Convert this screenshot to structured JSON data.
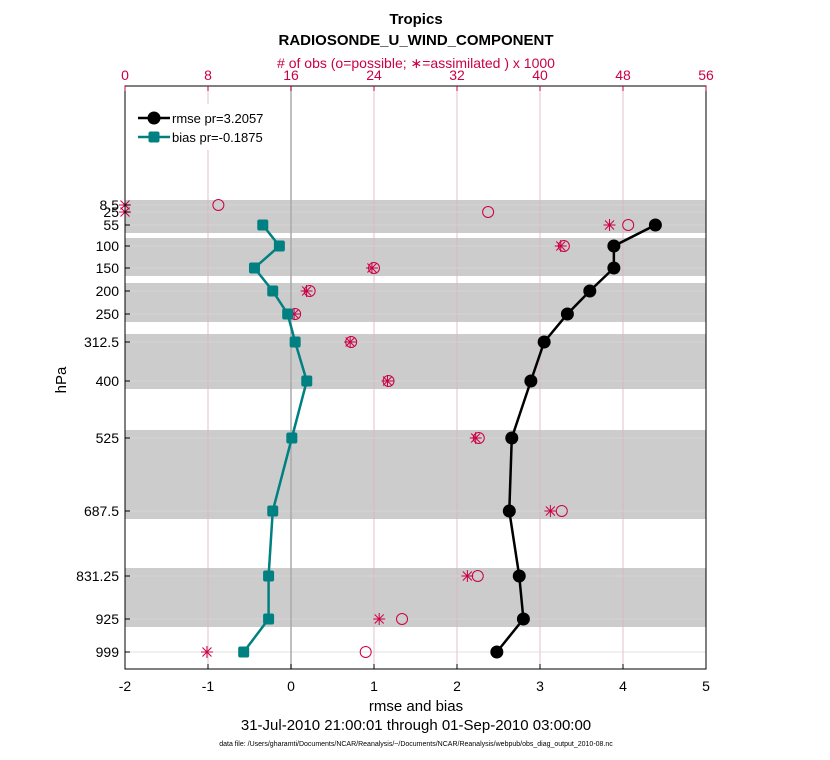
{
  "chart_data": {
    "type": "line",
    "title": "Tropics",
    "subtitle": "RADIOSONDE_U_WIND_COMPONENT",
    "top_axis_label": "# of obs (o=possible; ∗=assimilated ) x 1000",
    "top_ticks": [
      "0",
      "8",
      "16",
      "24",
      "32",
      "40",
      "48",
      "56"
    ],
    "xlabel": "rmse and bias",
    "ylabel": "hPa",
    "xlim": [
      -2,
      5
    ],
    "obs_lim": [
      0,
      56
    ],
    "x_ticks": [
      "-2",
      "-1",
      "0",
      "1",
      "2",
      "3",
      "4",
      "5"
    ],
    "pressure_levels": [
      "8.5",
      "25",
      "55",
      "100",
      "150",
      "200",
      "250",
      "312.5",
      "400",
      "525",
      "687.5",
      "831.25",
      "925",
      "999"
    ],
    "date_range": "31-Jul-2010 21:00:01 through 01-Sep-2010 03:00:00",
    "footer": "data file: /Users/gharamti/Documents/NCAR/Reanalysis/~/Documents/NCAR/Reanalysis/webpub/obs_diag_output_2010-08.nc",
    "series": [
      {
        "name": "rmse pr=3.2057",
        "color": "#000000",
        "levels": [
          "55",
          "100",
          "150",
          "200",
          "250",
          "312.5",
          "400",
          "525",
          "687.5",
          "831.25",
          "925",
          "999"
        ],
        "values": [
          4.39,
          3.89,
          3.89,
          3.6,
          3.33,
          3.05,
          2.89,
          2.66,
          2.63,
          2.75,
          2.8,
          2.48
        ]
      },
      {
        "name": "bias pr=-0.1875",
        "color": "#008080",
        "levels": [
          "55",
          "100",
          "150",
          "200",
          "250",
          "312.5",
          "400",
          "525",
          "687.5",
          "831.25",
          "925",
          "999"
        ],
        "values": [
          -0.34,
          -0.14,
          -0.44,
          -0.22,
          -0.04,
          0.05,
          0.19,
          0.01,
          -0.22,
          -0.27,
          -0.27,
          -0.57
        ]
      }
    ],
    "obs_possible": {
      "levels": [
        "25",
        "8.5",
        "55",
        "100",
        "150",
        "200",
        "250",
        "312.5",
        "400",
        "525",
        "687.5",
        "831.25",
        "925",
        "999"
      ],
      "values": [
        35.0,
        9.0,
        48.5,
        42.3,
        24.0,
        17.8,
        16.4,
        21.8,
        25.4,
        34.1,
        42.1,
        34.0,
        26.7,
        23.2
      ]
    },
    "obs_assimilated": {
      "levels": [
        "8.5",
        "25",
        "55",
        "100",
        "150",
        "200",
        "250",
        "312.5",
        "400",
        "525",
        "687.5",
        "831.25",
        "925",
        "999"
      ],
      "values": [
        0.0,
        0.0,
        46.7,
        42.0,
        23.8,
        17.5,
        16.3,
        21.7,
        25.3,
        33.8,
        41.0,
        33.0,
        24.5,
        7.9
      ]
    },
    "shaded_bands": [
      [
        "25",
        "55"
      ],
      [
        "100",
        "150"
      ],
      [
        "200",
        "250"
      ],
      [
        "312.5",
        "400"
      ],
      [
        "525",
        "687.5"
      ],
      [
        "831.25",
        "925"
      ]
    ],
    "grid": true,
    "legend_position": "top-left",
    "top_axis_color": "#cc0044"
  }
}
